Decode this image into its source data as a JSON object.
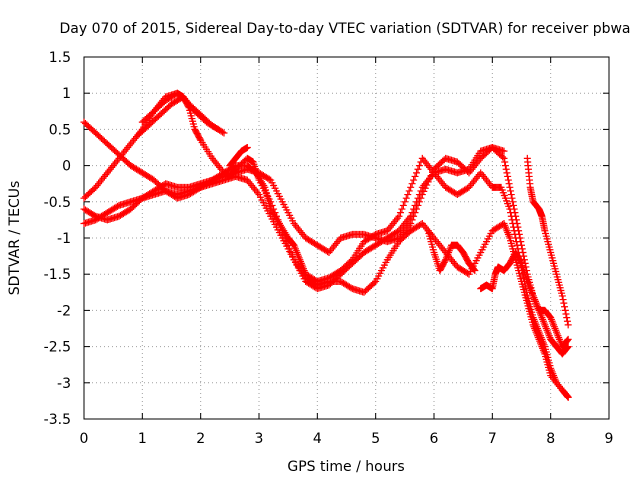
{
  "chart_data": {
    "type": "scatter",
    "title": "Day 070 of 2015, Sidereal Day-to-day VTEC variation (SDTVAR) for receiver pbwa",
    "xlabel": "GPS time / hours",
    "ylabel": "SDTVAR / TECUs",
    "xlim": [
      0,
      9
    ],
    "ylim": [
      -3.5,
      1.5
    ],
    "xticks": [
      0,
      1,
      2,
      3,
      4,
      5,
      6,
      7,
      8,
      9
    ],
    "yticks": [
      1.5,
      1,
      0.5,
      0,
      -0.5,
      -1,
      -1.5,
      -2,
      -2.5,
      -3,
      -3.5
    ],
    "grid": true,
    "marker": "+",
    "color": "#ff0000",
    "series": [
      {
        "name": "trace-a",
        "points": [
          [
            0,
            0.6
          ],
          [
            0.2,
            0.45
          ],
          [
            0.4,
            0.3
          ],
          [
            0.6,
            0.15
          ],
          [
            0.8,
            0.0
          ],
          [
            1.0,
            -0.1
          ],
          [
            1.2,
            -0.2
          ],
          [
            1.4,
            -0.35
          ],
          [
            1.6,
            -0.45
          ],
          [
            1.8,
            -0.4
          ],
          [
            2.0,
            -0.3
          ],
          [
            2.2,
            -0.2
          ],
          [
            2.4,
            -0.1
          ],
          [
            2.6,
            0.0
          ],
          [
            2.8,
            0.0
          ],
          [
            2.95,
            -0.1
          ],
          [
            3.1,
            -0.3
          ],
          [
            3.2,
            -0.6
          ],
          [
            3.35,
            -0.8
          ],
          [
            3.5,
            -1.0
          ],
          [
            3.6,
            -1.1
          ],
          [
            3.7,
            -1.3
          ],
          [
            3.8,
            -1.5
          ],
          [
            4.0,
            -1.6
          ],
          [
            4.2,
            -1.55
          ],
          [
            4.4,
            -1.45
          ],
          [
            4.6,
            -1.3
          ],
          [
            4.8,
            -1.05
          ],
          [
            5.0,
            -0.95
          ],
          [
            5.2,
            -0.9
          ],
          [
            5.4,
            -0.7
          ],
          [
            5.6,
            -0.3
          ],
          [
            5.8,
            0.1
          ],
          [
            6.0,
            -0.1
          ],
          [
            6.2,
            -0.3
          ],
          [
            6.4,
            -0.4
          ],
          [
            6.6,
            -0.3
          ],
          [
            6.8,
            -0.1
          ],
          [
            7.0,
            -0.3
          ],
          [
            7.15,
            -0.3
          ],
          [
            7.3,
            -0.6
          ],
          [
            7.4,
            -1.0
          ],
          [
            7.5,
            -1.4
          ],
          [
            7.6,
            -1.8
          ],
          [
            7.7,
            -2.1
          ],
          [
            7.8,
            -2.3
          ],
          [
            7.9,
            -2.5
          ],
          [
            8.0,
            -2.8
          ],
          [
            8.1,
            -3.0
          ],
          [
            8.3,
            -3.2
          ]
        ]
      },
      {
        "name": "trace-b",
        "points": [
          [
            0,
            -0.6
          ],
          [
            0.2,
            -0.7
          ],
          [
            0.4,
            -0.75
          ],
          [
            0.6,
            -0.7
          ],
          [
            0.8,
            -0.6
          ],
          [
            1.0,
            -0.45
          ],
          [
            1.2,
            -0.35
          ],
          [
            1.4,
            -0.25
          ],
          [
            1.6,
            -0.3
          ],
          [
            1.8,
            -0.3
          ],
          [
            2.0,
            -0.25
          ],
          [
            2.2,
            -0.2
          ],
          [
            2.4,
            -0.15
          ],
          [
            2.6,
            -0.1
          ],
          [
            2.8,
            -0.05
          ],
          [
            3.0,
            -0.1
          ],
          [
            3.2,
            -0.2
          ],
          [
            3.4,
            -0.5
          ],
          [
            3.6,
            -0.8
          ],
          [
            3.8,
            -1.0
          ],
          [
            4.0,
            -1.1
          ],
          [
            4.2,
            -1.2
          ],
          [
            4.4,
            -1.0
          ],
          [
            4.6,
            -0.95
          ],
          [
            4.8,
            -0.95
          ],
          [
            5.0,
            -1.0
          ],
          [
            5.2,
            -1.05
          ],
          [
            5.4,
            -1.0
          ],
          [
            5.6,
            -0.8
          ],
          [
            5.8,
            -0.4
          ],
          [
            6.0,
            -0.05
          ],
          [
            6.2,
            0.1
          ],
          [
            6.4,
            0.05
          ],
          [
            6.6,
            -0.1
          ],
          [
            6.8,
            0.1
          ],
          [
            7.0,
            0.25
          ],
          [
            7.2,
            0.1
          ],
          [
            7.3,
            -0.3
          ],
          [
            7.4,
            -0.7
          ],
          [
            7.5,
            -1.1
          ],
          [
            7.6,
            -1.5
          ],
          [
            7.7,
            -1.8
          ],
          [
            7.8,
            -2.0
          ],
          [
            7.9,
            -2.0
          ],
          [
            8.0,
            -2.1
          ],
          [
            8.1,
            -2.3
          ],
          [
            8.2,
            -2.5
          ],
          [
            8.3,
            -2.4
          ]
        ]
      },
      {
        "name": "trace-c",
        "points": [
          [
            0,
            -0.45
          ],
          [
            0.2,
            -0.3
          ],
          [
            0.4,
            -0.1
          ],
          [
            0.6,
            0.1
          ],
          [
            0.8,
            0.3
          ],
          [
            1.0,
            0.5
          ],
          [
            1.2,
            0.75
          ],
          [
            1.4,
            0.95
          ],
          [
            1.6,
            1.0
          ],
          [
            1.7,
            0.95
          ],
          [
            1.8,
            0.8
          ],
          [
            1.9,
            0.5
          ],
          [
            2.0,
            0.35
          ],
          [
            2.2,
            0.1
          ],
          [
            2.4,
            -0.1
          ],
          [
            2.5,
            -0.15
          ],
          [
            2.6,
            -0.05
          ],
          [
            2.8,
            0.1
          ],
          [
            2.9,
            0.05
          ],
          [
            3.0,
            -0.2
          ],
          [
            3.2,
            -0.5
          ],
          [
            3.4,
            -0.9
          ],
          [
            3.6,
            -1.3
          ],
          [
            3.8,
            -1.6
          ],
          [
            4.0,
            -1.7
          ],
          [
            4.2,
            -1.65
          ],
          [
            4.4,
            -1.5
          ],
          [
            4.6,
            -1.35
          ],
          [
            4.8,
            -1.2
          ],
          [
            5.0,
            -1.1
          ],
          [
            5.2,
            -1.0
          ],
          [
            5.4,
            -0.9
          ],
          [
            5.6,
            -0.7
          ],
          [
            5.8,
            -0.3
          ],
          [
            6.0,
            -0.1
          ],
          [
            6.2,
            -0.05
          ],
          [
            6.4,
            -0.1
          ],
          [
            6.6,
            -0.05
          ],
          [
            6.8,
            0.2
          ],
          [
            7.0,
            0.25
          ],
          [
            7.2,
            0.2
          ]
        ]
      },
      {
        "name": "trace-d",
        "points": [
          [
            0,
            -0.8
          ],
          [
            0.2,
            -0.75
          ],
          [
            0.4,
            -0.65
          ],
          [
            0.6,
            -0.55
          ],
          [
            0.8,
            -0.5
          ],
          [
            1.0,
            -0.45
          ],
          [
            1.2,
            -0.4
          ],
          [
            1.4,
            -0.35
          ],
          [
            1.6,
            -0.4
          ],
          [
            1.8,
            -0.35
          ],
          [
            2.0,
            -0.3
          ],
          [
            2.2,
            -0.25
          ],
          [
            2.4,
            -0.2
          ],
          [
            2.6,
            -0.15
          ],
          [
            2.8,
            -0.2
          ],
          [
            3.0,
            -0.4
          ],
          [
            3.2,
            -0.7
          ],
          [
            3.4,
            -1.0
          ],
          [
            3.6,
            -1.3
          ],
          [
            3.8,
            -1.55
          ],
          [
            4.0,
            -1.65
          ],
          [
            4.2,
            -1.6
          ],
          [
            4.4,
            -1.6
          ],
          [
            4.6,
            -1.7
          ],
          [
            4.8,
            -1.75
          ],
          [
            5.0,
            -1.6
          ],
          [
            5.2,
            -1.3
          ],
          [
            5.4,
            -1.05
          ],
          [
            5.6,
            -0.9
          ],
          [
            5.8,
            -0.8
          ],
          [
            6.0,
            -1.0
          ],
          [
            6.2,
            -1.2
          ],
          [
            6.4,
            -1.4
          ],
          [
            6.6,
            -1.5
          ],
          [
            6.8,
            -1.2
          ],
          [
            7.0,
            -0.9
          ],
          [
            7.2,
            -0.8
          ],
          [
            7.3,
            -1.0
          ],
          [
            7.4,
            -1.3
          ],
          [
            7.5,
            -1.6
          ],
          [
            7.6,
            -1.9
          ],
          [
            7.7,
            -2.2
          ],
          [
            7.8,
            -2.4
          ],
          [
            7.9,
            -2.6
          ],
          [
            8.0,
            -2.9
          ],
          [
            8.2,
            -3.1
          ],
          [
            8.3,
            -3.2
          ]
        ]
      },
      {
        "name": "trace-e",
        "points": [
          [
            1.0,
            0.6
          ],
          [
            1.2,
            0.75
          ],
          [
            1.4,
            0.9
          ],
          [
            1.6,
            1.0
          ],
          [
            1.8,
            0.85
          ],
          [
            2.0,
            0.7
          ],
          [
            2.2,
            0.55
          ],
          [
            2.4,
            0.45
          ]
        ]
      },
      {
        "name": "trace-f",
        "points": [
          [
            0.9,
            0.4
          ],
          [
            1.1,
            0.55
          ],
          [
            1.3,
            0.7
          ],
          [
            1.5,
            0.85
          ],
          [
            1.7,
            0.95
          ],
          [
            1.9,
            0.75
          ],
          [
            2.1,
            0.6
          ],
          [
            2.3,
            0.5
          ]
        ]
      },
      {
        "name": "trace-g",
        "points": [
          [
            2.5,
            0.0
          ],
          [
            2.6,
            0.1
          ],
          [
            2.7,
            0.2
          ],
          [
            2.8,
            0.25
          ]
        ]
      },
      {
        "name": "trace-h",
        "points": [
          [
            5.9,
            -0.9
          ],
          [
            6.0,
            -1.2
          ],
          [
            6.1,
            -1.45
          ],
          [
            6.2,
            -1.3
          ],
          [
            6.3,
            -1.1
          ],
          [
            6.4,
            -1.1
          ],
          [
            6.5,
            -1.2
          ],
          [
            6.6,
            -1.35
          ],
          [
            6.7,
            -1.45
          ]
        ]
      },
      {
        "name": "trace-i",
        "points": [
          [
            6.8,
            -1.7
          ],
          [
            6.9,
            -1.65
          ],
          [
            7.0,
            -1.7
          ],
          [
            7.05,
            -1.5
          ],
          [
            7.1,
            -1.4
          ],
          [
            7.2,
            -1.45
          ],
          [
            7.3,
            -1.35
          ],
          [
            7.4,
            -1.2
          ],
          [
            7.5,
            -1.35
          ],
          [
            7.6,
            -1.6
          ],
          [
            7.7,
            -1.8
          ],
          [
            7.8,
            -2.0
          ],
          [
            7.9,
            -2.2
          ],
          [
            8.0,
            -2.4
          ],
          [
            8.1,
            -2.5
          ],
          [
            8.2,
            -2.6
          ],
          [
            8.3,
            -2.5
          ]
        ]
      },
      {
        "name": "trace-j",
        "points": [
          [
            7.6,
            0.1
          ],
          [
            7.65,
            -0.3
          ],
          [
            7.7,
            -0.5
          ],
          [
            7.8,
            -0.6
          ],
          [
            7.85,
            -0.7
          ],
          [
            7.9,
            -0.9
          ],
          [
            8.0,
            -1.2
          ],
          [
            8.1,
            -1.5
          ],
          [
            8.2,
            -1.8
          ],
          [
            8.3,
            -2.2
          ]
        ]
      }
    ]
  }
}
